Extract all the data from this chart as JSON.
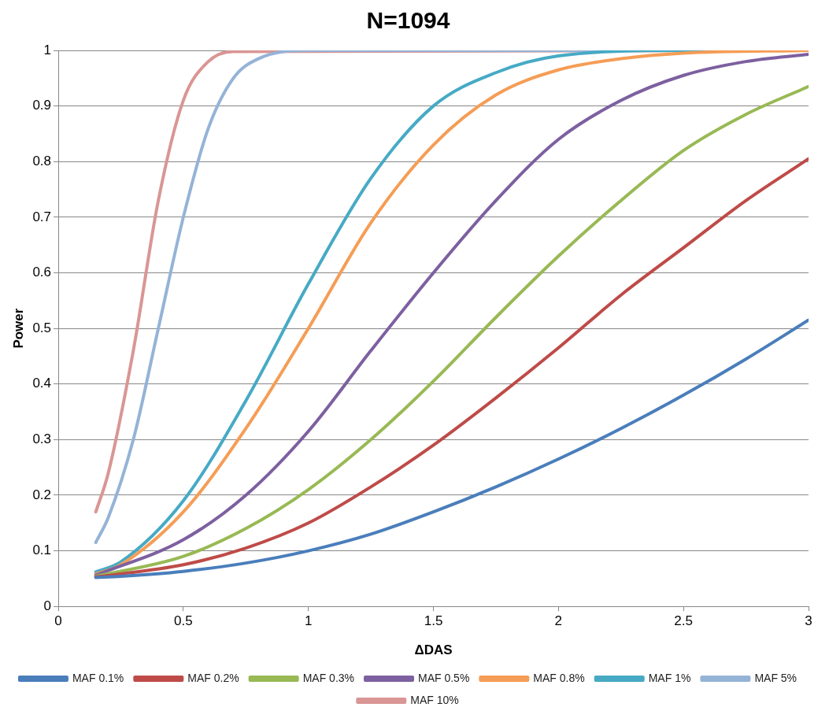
{
  "chart_data": {
    "type": "line",
    "title": "N=1094",
    "xlabel": "ΔDAS",
    "ylabel": "Power",
    "xlim": [
      0,
      3
    ],
    "xticks": [
      0,
      0.5,
      1,
      1.5,
      2,
      2.5,
      3
    ],
    "ylim": [
      0,
      1
    ],
    "yticks": [
      0,
      0.1,
      0.2,
      0.3,
      0.4,
      0.5,
      0.6,
      0.7,
      0.8,
      0.9,
      1
    ],
    "grid": "y",
    "legend": "bottom",
    "marker": "none",
    "line_style": "solid",
    "series": [
      {
        "name": "MAF 0.1%",
        "color": "#4a7ebb",
        "x": [
          0.15,
          0.25,
          0.5,
          0.75,
          1,
          1.25,
          1.5,
          1.75,
          2,
          2.25,
          2.5,
          2.75,
          3
        ],
        "values": [
          0.052,
          0.054,
          0.063,
          0.078,
          0.1,
          0.13,
          0.17,
          0.215,
          0.265,
          0.32,
          0.38,
          0.445,
          0.515
        ]
      },
      {
        "name": "MAF 0.2%",
        "color": "#be4b48",
        "x": [
          0.15,
          0.5,
          0.75,
          1,
          1.25,
          1.5,
          1.75,
          2,
          2.25,
          2.5,
          2.75,
          3
        ],
        "values": [
          0.053,
          0.075,
          0.105,
          0.15,
          0.215,
          0.29,
          0.375,
          0.465,
          0.56,
          0.645,
          0.73,
          0.805
        ]
      },
      {
        "name": "MAF 0.3%",
        "color": "#98b954",
        "x": [
          0.15,
          0.5,
          0.75,
          1,
          1.25,
          1.5,
          1.75,
          2,
          2.25,
          2.5,
          2.75,
          3
        ],
        "values": [
          0.054,
          0.09,
          0.14,
          0.21,
          0.3,
          0.405,
          0.52,
          0.63,
          0.73,
          0.82,
          0.885,
          0.935
        ]
      },
      {
        "name": "MAF 0.5%",
        "color": "#7d60a0",
        "x": [
          0.15,
          0.5,
          0.75,
          1,
          1.25,
          1.5,
          1.75,
          2,
          2.25,
          2.5,
          2.75,
          3
        ],
        "values": [
          0.056,
          0.12,
          0.2,
          0.315,
          0.46,
          0.6,
          0.73,
          0.84,
          0.91,
          0.955,
          0.98,
          0.993
        ]
      },
      {
        "name": "MAF 0.8%",
        "color": "#f59d56",
        "x": [
          0.15,
          0.25,
          0.5,
          0.75,
          1,
          1.25,
          1.5,
          1.75,
          2,
          2.25,
          2.5,
          3
        ],
        "values": [
          0.058,
          0.075,
          0.17,
          0.32,
          0.5,
          0.69,
          0.83,
          0.92,
          0.965,
          0.985,
          0.995,
          1
        ]
      },
      {
        "name": "MAF 1%",
        "color": "#46aac5",
        "x": [
          0.15,
          0.25,
          0.5,
          0.75,
          1,
          1.25,
          1.5,
          1.75,
          2,
          2.5,
          3
        ],
        "values": [
          0.062,
          0.08,
          0.19,
          0.37,
          0.58,
          0.77,
          0.9,
          0.96,
          0.99,
          1,
          1
        ]
      },
      {
        "name": "MAF 5%",
        "color": "#95b3d7",
        "x": [
          0.15,
          0.2,
          0.3,
          0.4,
          0.5,
          0.6,
          0.7,
          0.8,
          1,
          3
        ],
        "values": [
          0.115,
          0.16,
          0.3,
          0.5,
          0.7,
          0.86,
          0.95,
          0.985,
          1,
          1
        ]
      },
      {
        "name": "MAF 10%",
        "color": "#d99694",
        "x": [
          0.15,
          0.2,
          0.3,
          0.4,
          0.5,
          0.6,
          0.7,
          3
        ],
        "values": [
          0.17,
          0.24,
          0.46,
          0.73,
          0.91,
          0.98,
          0.998,
          1
        ]
      }
    ]
  }
}
